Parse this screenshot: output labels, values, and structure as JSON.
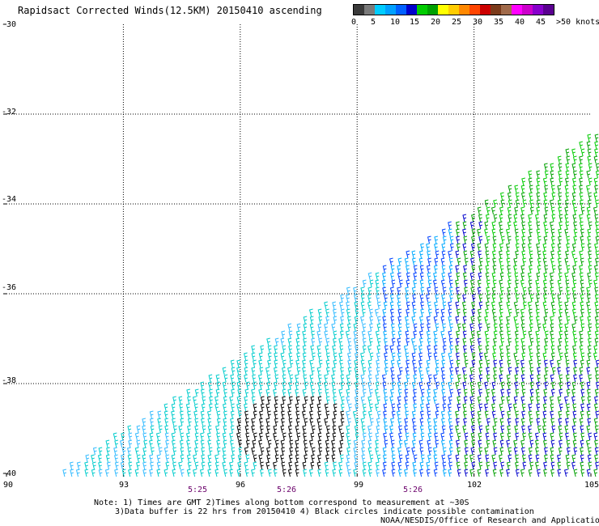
{
  "title": "Rapidsact Corrected Winds(12.5KM) 20150410 ascending",
  "legend": {
    "colors": [
      "#3a3a3a",
      "#7a7a7a",
      "#00ccff",
      "#00a0ff",
      "#0060ff",
      "#0000cc",
      "#00cc00",
      "#00a000",
      "#ffff00",
      "#ffcc00",
      "#ff8800",
      "#ff4400",
      "#cc0000",
      "#7a3a1a",
      "#a06a4a",
      "#ff00ff",
      "#cc00cc",
      "#8800cc",
      "#5a0090"
    ],
    "labels": [
      "0",
      "5",
      "10",
      "15",
      "20",
      "25",
      "30",
      "35",
      "40",
      "45",
      ">50 knots"
    ]
  },
  "map": {
    "lon_range": [
      90,
      105
    ],
    "lat_range": [
      -40,
      -30
    ],
    "y_ticks": [
      "-30",
      "-32",
      "-34",
      "-36",
      "-38",
      "-40"
    ],
    "x_ticks": [
      "90",
      "93",
      "96",
      "99",
      "102",
      "105"
    ],
    "time_labels": [
      {
        "text": "5:25",
        "lon": 94.8
      },
      {
        "text": "5:26",
        "lon": 97.1
      },
      {
        "text": "5:26",
        "lon": 100.4
      }
    ],
    "swath_edge": [
      [
        91.5,
        -39.9
      ],
      [
        105,
        -32.5
      ]
    ]
  },
  "notes": {
    "line1": "Note: 1) Times are GMT 2)Times along bottom correspond to measurement at ~30S",
    "line2": "3)Data buffer is 22 hrs from 20150410 4) Black circles indicate possible contamination",
    "line3": "NOAA/NESDIS/Office of Research and Applications"
  }
}
